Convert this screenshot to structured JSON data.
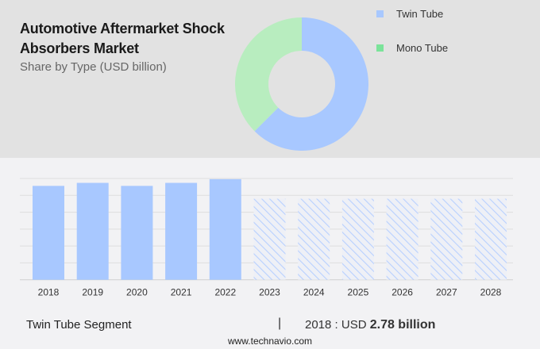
{
  "header": {
    "title": "Automotive Aftermarket Shock Absorbers Market",
    "subtitle": "Share by Type (USD billion)"
  },
  "legend": {
    "items": [
      {
        "label": "Twin Tube",
        "color": "#a8c8ff"
      },
      {
        "label": "Mono Tube",
        "color": "#7be39a"
      }
    ]
  },
  "footer": {
    "segment": "Twin Tube Segment",
    "separator": "|",
    "value_prefix": "2018 : USD",
    "value": "2.78 billion",
    "url": "www.technavio.com"
  },
  "chart_data": [
    {
      "type": "pie",
      "title": "Share by Type (USD billion)",
      "donut": true,
      "categories": [
        "Twin Tube",
        "Mono Tube"
      ],
      "values": [
        62.5,
        37.5
      ],
      "colors": [
        "#a8c8ff",
        "#b8edbf"
      ],
      "legend_position": "right"
    },
    {
      "type": "bar",
      "title": "Twin Tube Segment",
      "categories": [
        "2018",
        "2019",
        "2020",
        "2021",
        "2022",
        "2023",
        "2024",
        "2025",
        "2026",
        "2027",
        "2028"
      ],
      "values": [
        2.78,
        2.87,
        2.78,
        2.87,
        2.98,
        2.4,
        2.4,
        2.4,
        2.4,
        2.4,
        2.4
      ],
      "forecast_from": "2023",
      "forecast_style": "hatched",
      "xlabel": "",
      "ylabel": "",
      "ylim": [
        0,
        3.0
      ],
      "grid": true,
      "gridline_count": 6,
      "bar_color": "#a8c8ff",
      "annotation": "2018 : USD 2.78 billion"
    }
  ]
}
